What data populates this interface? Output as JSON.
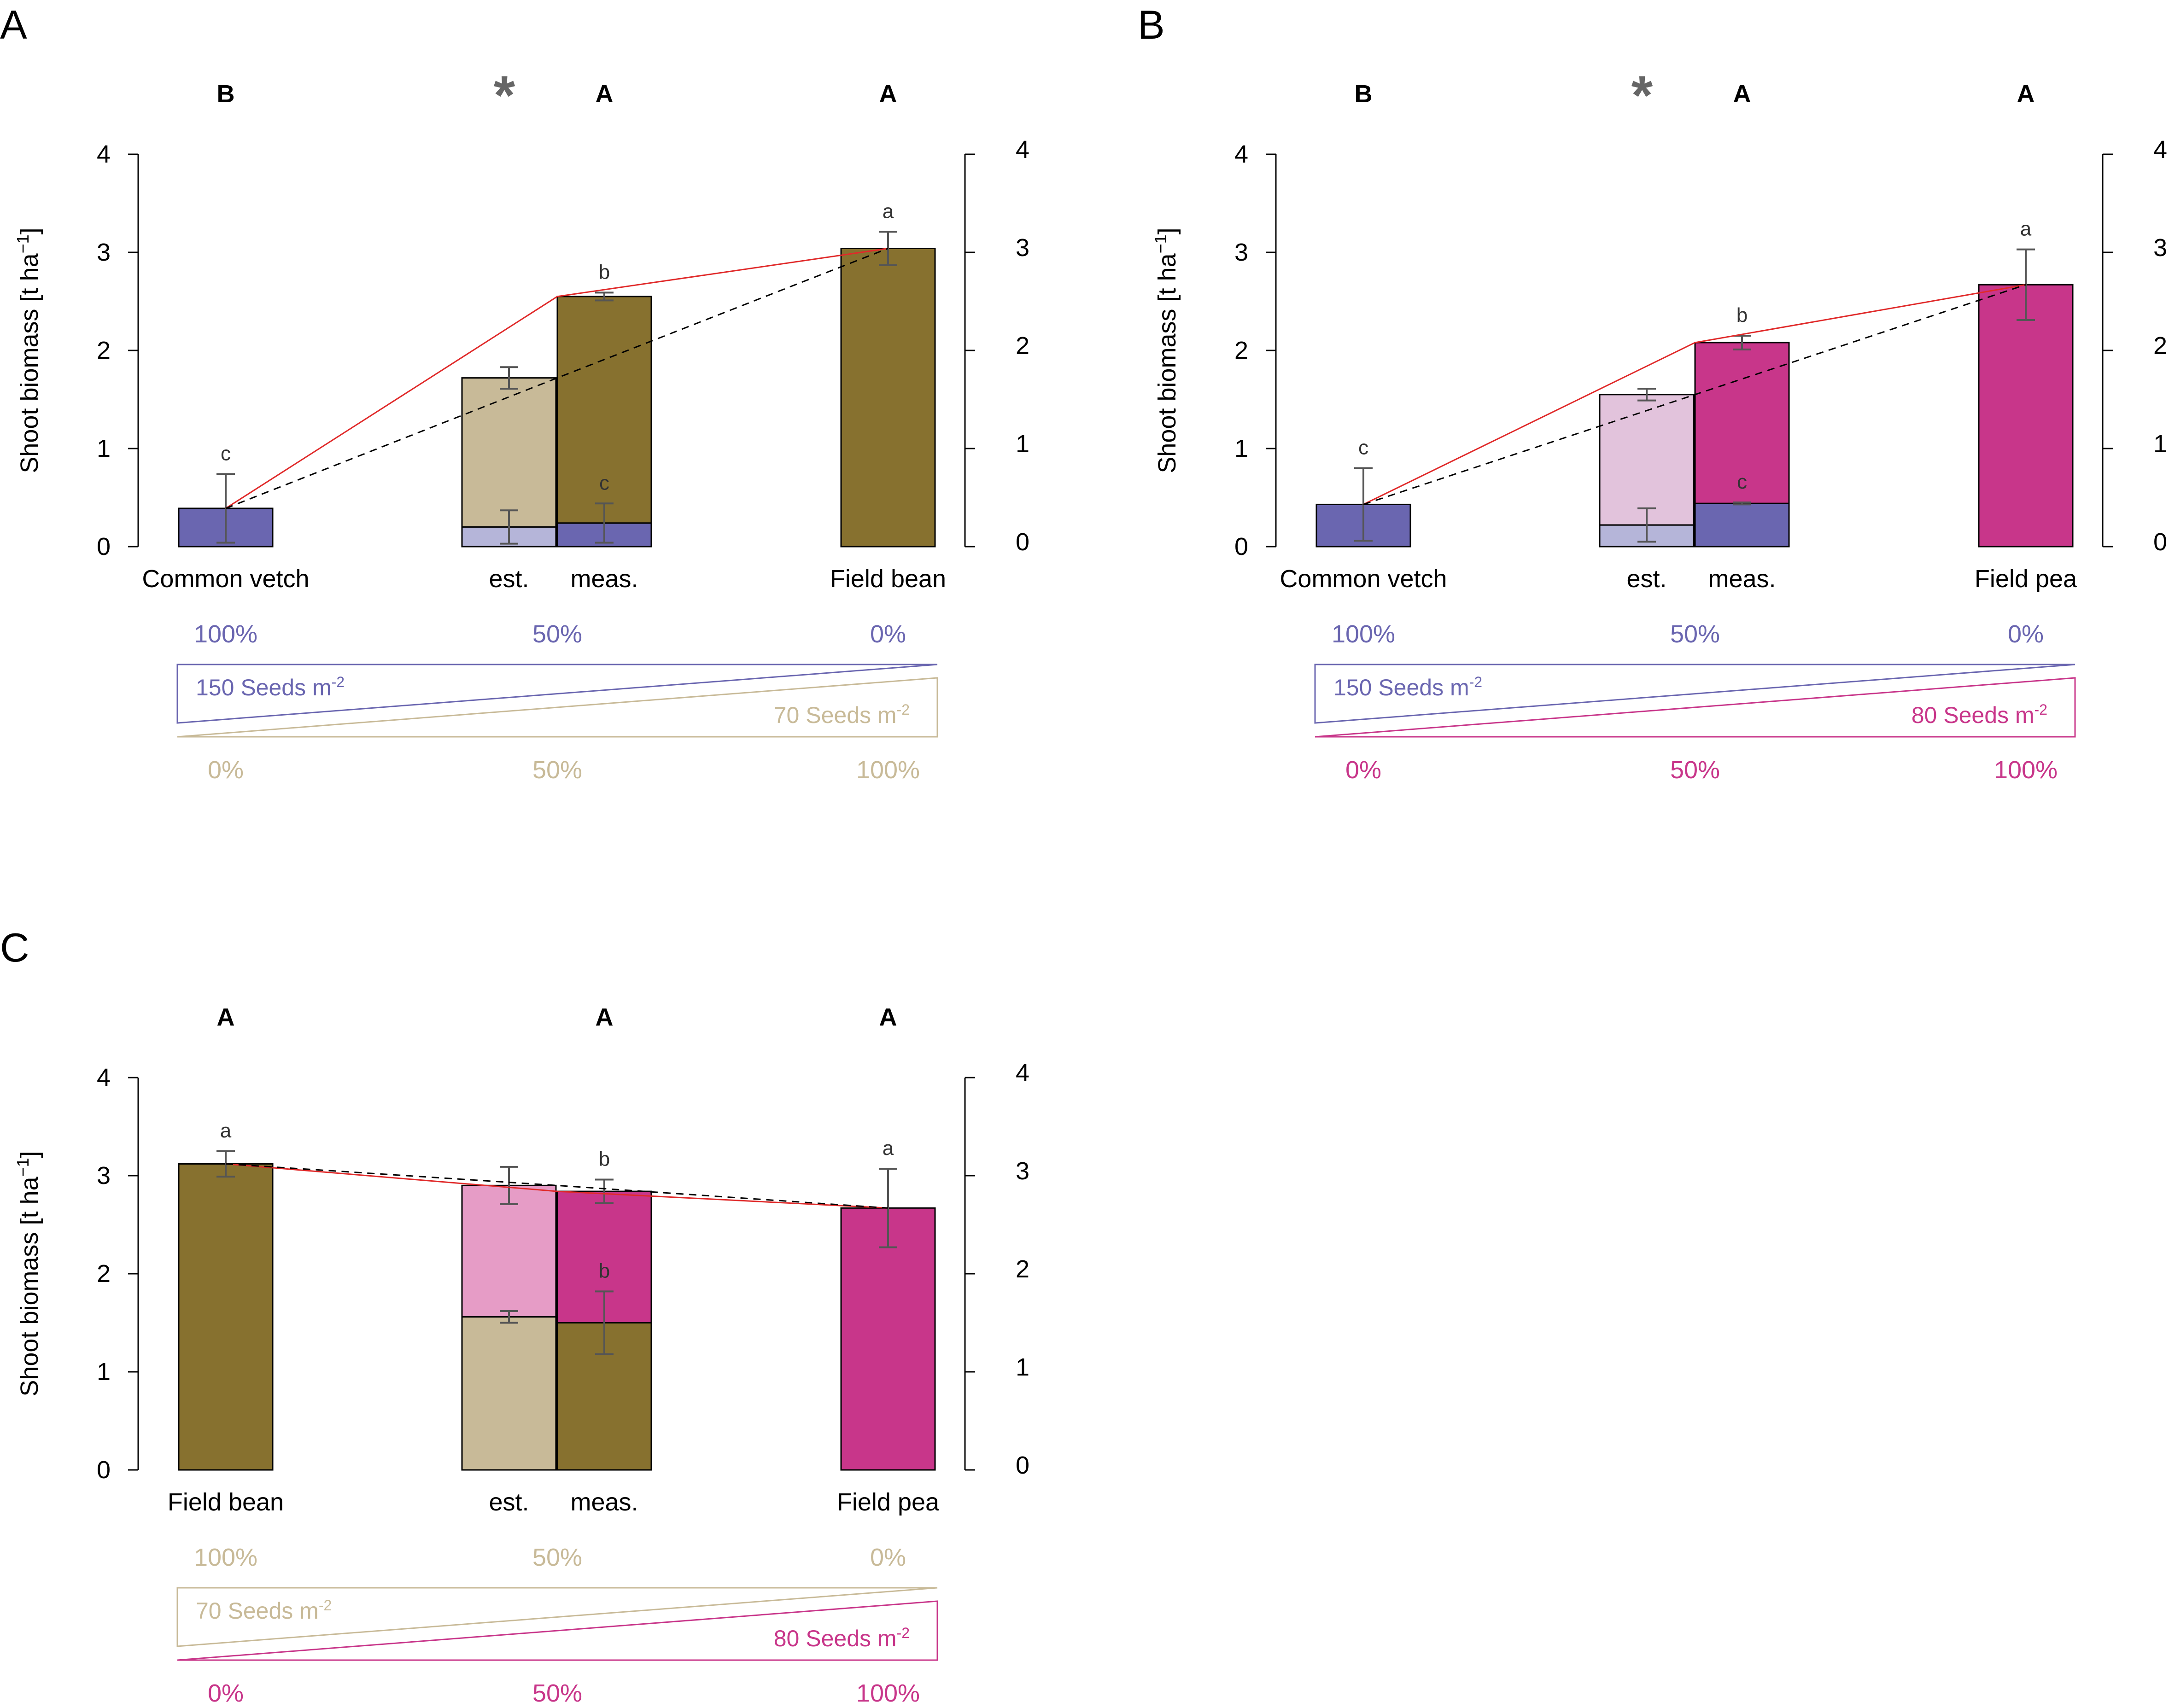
{
  "figure": {
    "background": "#ffffff"
  },
  "colors": {
    "vetch": "#6a66b0",
    "vetch_light": "#b5b5d9",
    "bean": "#87712f",
    "bean_light": "#c8ba98",
    "pea": "#c8368a",
    "pea_light": "#e2c3dc",
    "pea_light_c": "#e69cc6",
    "red_line": "#e02a2a",
    "dashed_line": "#000000",
    "error_bar": "#555555",
    "vetch_text": "#6a66b0",
    "bean_text": "#c8ba98",
    "pea_text": "#c8368a",
    "asterisk": "#666666"
  },
  "chart_data": [
    {
      "panel": "A",
      "type": "bar",
      "ylabel": "Shoot biomass [t ha",
      "ylabel_sup": "−1",
      "ylabel_close": "]",
      "ylim": [
        0,
        4
      ],
      "yticks": [
        "0",
        "1",
        "2",
        "3",
        "4"
      ],
      "tick_values": [
        0,
        1,
        2,
        3,
        4
      ],
      "top_letters": [
        "B",
        "A",
        "A"
      ],
      "asterisk": "*",
      "bars": [
        {
          "id": "left-pure",
          "label": "Common vetch",
          "value": 0.39,
          "err": 0.35,
          "color": "vetch",
          "letter": "c"
        },
        {
          "id": "est-top",
          "value": 1.72,
          "base": 0.2,
          "err": 0.11,
          "color": "bean_light"
        },
        {
          "id": "est-bottom",
          "value": 0.2,
          "base": 0,
          "err": 0.17,
          "color": "vetch_light"
        },
        {
          "id": "meas-top",
          "value": 2.55,
          "base": 0.24,
          "err": 0.04,
          "color": "bean",
          "letter": "b"
        },
        {
          "id": "meas-bottom",
          "value": 0.24,
          "base": 0,
          "err": 0.2,
          "color": "vetch",
          "letter": "c"
        },
        {
          "id": "right-pure",
          "label": "Field bean",
          "value": 3.04,
          "err": 0.17,
          "color": "bean",
          "letter": "a"
        }
      ],
      "labels": {
        "est": "est.",
        "meas": "meas.",
        "left": "Common vetch",
        "right": "Field bean"
      },
      "red_line": [
        0.39,
        2.55,
        3.04
      ],
      "dashed_line": [
        0.39,
        1.72,
        3.04
      ],
      "proportions": {
        "top": [
          "100%",
          "50%",
          "0%"
        ],
        "bottom": [
          "0%",
          "50%",
          "100%"
        ],
        "top_color": "vetch_text",
        "bottom_color": "bean_text",
        "top_seeds": "150 Seeds m",
        "bottom_seeds": "70 Seeds m",
        "exp": "-2"
      }
    },
    {
      "panel": "B",
      "type": "bar",
      "ylabel": "Shoot biomass [t ha",
      "ylabel_sup": "−1",
      "ylabel_close": "]",
      "ylim": [
        0,
        4
      ],
      "yticks": [
        "0",
        "1",
        "2",
        "3",
        "4"
      ],
      "tick_values": [
        0,
        1,
        2,
        3,
        4
      ],
      "top_letters": [
        "B",
        "A",
        "A"
      ],
      "asterisk": "*",
      "bars": [
        {
          "id": "left-pure",
          "label": "Common vetch",
          "value": 0.43,
          "err": 0.37,
          "color": "vetch",
          "letter": "c"
        },
        {
          "id": "est-top",
          "value": 1.55,
          "base": 0.22,
          "err": 0.06,
          "color": "pea_light"
        },
        {
          "id": "est-bottom",
          "value": 0.22,
          "base": 0,
          "err": 0.17,
          "color": "vetch_light"
        },
        {
          "id": "meas-top",
          "value": 2.08,
          "base": 0.44,
          "err": 0.07,
          "color": "pea",
          "letter": "b"
        },
        {
          "id": "meas-bottom",
          "value": 0.44,
          "base": 0,
          "err": 0.01,
          "color": "vetch",
          "letter": "c"
        },
        {
          "id": "right-pure",
          "label": "Field pea",
          "value": 2.67,
          "err": 0.36,
          "color": "pea",
          "letter": "a"
        }
      ],
      "labels": {
        "est": "est.",
        "meas": "meas.",
        "left": "Common vetch",
        "right": "Field pea"
      },
      "red_line": [
        0.43,
        2.08,
        2.67
      ],
      "dashed_line": [
        0.43,
        1.55,
        2.67
      ],
      "proportions": {
        "top": [
          "100%",
          "50%",
          "0%"
        ],
        "bottom": [
          "0%",
          "50%",
          "100%"
        ],
        "top_color": "vetch_text",
        "bottom_color": "pea_text",
        "top_seeds": "150 Seeds m",
        "bottom_seeds": "80 Seeds m",
        "exp": "-2"
      }
    },
    {
      "panel": "C",
      "type": "bar",
      "ylabel": "Shoot biomass [t ha",
      "ylabel_sup": "−1",
      "ylabel_close": "]",
      "ylim": [
        0,
        4
      ],
      "yticks": [
        "0",
        "1",
        "2",
        "3",
        "4"
      ],
      "tick_values": [
        0,
        1,
        2,
        3,
        4
      ],
      "top_letters": [
        "A",
        "A",
        "A"
      ],
      "asterisk": "",
      "bars": [
        {
          "id": "left-pure",
          "label": "Field bean",
          "value": 3.12,
          "err": 0.13,
          "color": "bean",
          "letter": "a"
        },
        {
          "id": "est-top",
          "value": 2.9,
          "base": 1.56,
          "err": 0.19,
          "color": "pea_light_c"
        },
        {
          "id": "est-bottom",
          "value": 1.56,
          "base": 0,
          "err": 0.06,
          "color": "bean_light"
        },
        {
          "id": "meas-top",
          "value": 2.84,
          "base": 1.5,
          "err": 0.12,
          "color": "pea",
          "letter": "b"
        },
        {
          "id": "meas-bottom",
          "value": 1.5,
          "base": 0,
          "err": 0.32,
          "color": "bean",
          "letter": "b"
        },
        {
          "id": "right-pure",
          "label": "Field pea",
          "value": 2.67,
          "err": 0.4,
          "color": "pea",
          "letter": "a"
        }
      ],
      "labels": {
        "est": "est.",
        "meas": "meas.",
        "left": "Field bean",
        "right": "Field pea"
      },
      "red_line": [
        3.12,
        2.84,
        2.67
      ],
      "dashed_line": [
        3.12,
        2.9,
        2.67
      ],
      "proportions": {
        "top": [
          "100%",
          "50%",
          "0%"
        ],
        "bottom": [
          "0%",
          "50%",
          "100%"
        ],
        "top_color": "bean_text",
        "bottom_color": "pea_text",
        "top_seeds": "70 Seeds m",
        "bottom_seeds": "80 Seeds m",
        "exp": "-2"
      }
    }
  ]
}
